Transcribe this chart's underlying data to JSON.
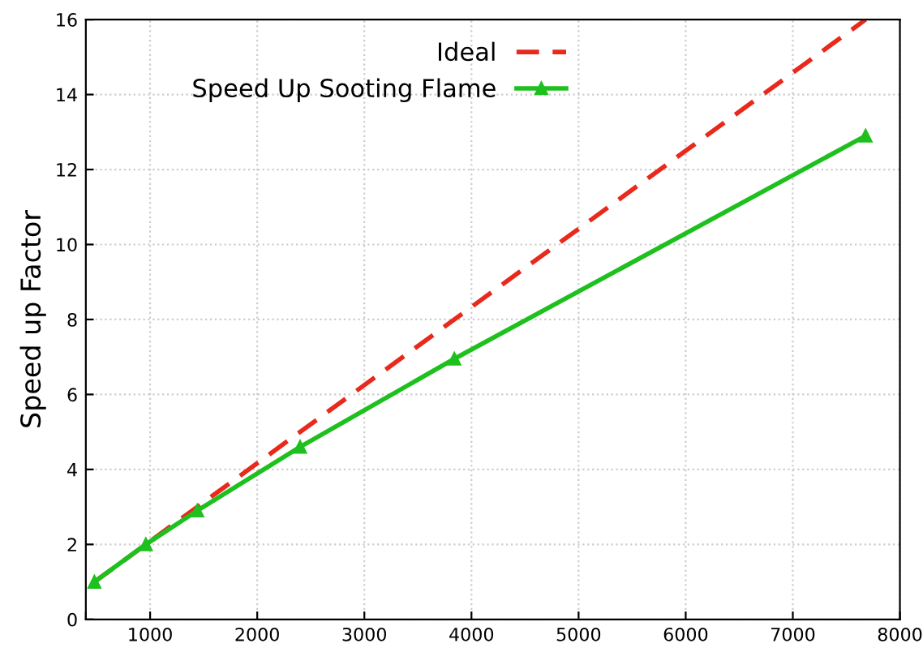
{
  "chart_data": {
    "type": "line",
    "ylabel": "Speed up Factor",
    "x": [
      480,
      960,
      1440,
      2400,
      3840,
      7680
    ],
    "series": [
      {
        "name": "Ideal",
        "color": "#e8291c",
        "x": [
          480,
          7680
        ],
        "values": [
          1,
          16
        ],
        "line_style": "dashed",
        "marker": "none"
      },
      {
        "name": "Speed Up Sooting Flame",
        "color": "#1ec01e",
        "values": [
          1,
          2,
          2.9,
          4.6,
          6.95,
          12.9
        ],
        "line_style": "solid",
        "marker": "triangle"
      }
    ],
    "xlim": [
      400,
      8000
    ],
    "xticks": [
      {
        "value": 400,
        "label": null
      },
      1000,
      2000,
      3000,
      4000,
      5000,
      6000,
      7000,
      8000
    ],
    "ylim": [
      0,
      16
    ],
    "yticks": [
      0,
      2,
      4,
      6,
      8,
      10,
      12,
      14,
      16
    ],
    "grid": true,
    "legend": "top"
  }
}
